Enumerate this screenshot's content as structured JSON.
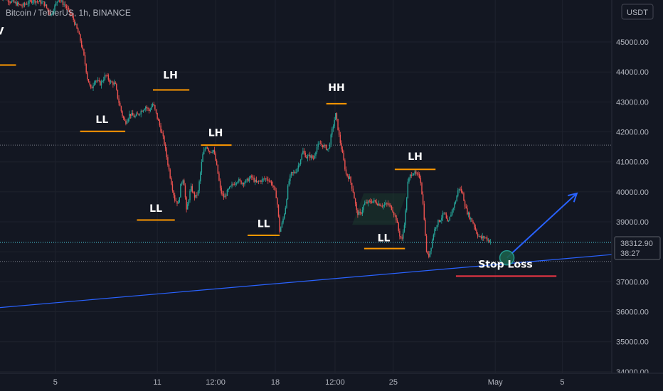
{
  "chart_data": {
    "type": "candlestick",
    "symbol_line": "Bitcoin / TetherUS, 1h, BINANCE",
    "currency": "USDT",
    "price_axis": {
      "range": [
        33950,
        46400
      ],
      "ticks": [
        {
          "value": 45000,
          "label": "45000.00"
        },
        {
          "value": 44000,
          "label": "44000.00"
        },
        {
          "value": 43000,
          "label": "43000.00"
        },
        {
          "value": 42000,
          "label": "42000.00"
        },
        {
          "value": 41000,
          "label": "41000.00"
        },
        {
          "value": 40000,
          "label": "40000.00"
        },
        {
          "value": 39000,
          "label": "39000.00"
        },
        {
          "value": 38000,
          "label": "38000.00"
        },
        {
          "value": 37000,
          "label": "37000.00"
        },
        {
          "value": 36000,
          "label": "36000.00"
        },
        {
          "value": 35000,
          "label": "35000.00"
        },
        {
          "value": 34000,
          "label": "34000.00"
        }
      ]
    },
    "time_axis": {
      "range": [
        0,
        840
      ],
      "ticks": [
        {
          "t": 76,
          "label": "5"
        },
        {
          "t": 216,
          "label": "11"
        },
        {
          "t": 296,
          "label": "12:00"
        },
        {
          "t": 378,
          "label": "18"
        },
        {
          "t": 460,
          "label": "12:00"
        },
        {
          "t": 540,
          "label": "25"
        },
        {
          "t": 680,
          "label": "May"
        },
        {
          "t": 772,
          "label": "5"
        }
      ]
    },
    "last_price": {
      "value": 38312.9,
      "label": "38312.90",
      "countdown": "38:27"
    },
    "horizontal_lines": [
      41560,
      37680
    ],
    "price_path": [
      [
        0,
        46550
      ],
      [
        15,
        46350
      ],
      [
        30,
        46200
      ],
      [
        45,
        46400
      ],
      [
        60,
        46300
      ],
      [
        70,
        45900
      ],
      [
        80,
        46450
      ],
      [
        90,
        46200
      ],
      [
        100,
        45800
      ],
      [
        106,
        45400
      ],
      [
        110,
        45100
      ],
      [
        115,
        44550
      ],
      [
        120,
        43800
      ],
      [
        125,
        43400
      ],
      [
        130,
        43750
      ],
      [
        138,
        43600
      ],
      [
        145,
        43900
      ],
      [
        152,
        43650
      ],
      [
        158,
        43600
      ],
      [
        162,
        43100
      ],
      [
        168,
        42550
      ],
      [
        172,
        42300
      ],
      [
        178,
        42600
      ],
      [
        185,
        42500
      ],
      [
        192,
        42650
      ],
      [
        200,
        42850
      ],
      [
        205,
        42700
      ],
      [
        210,
        42950
      ],
      [
        215,
        42550
      ],
      [
        220,
        42150
      ],
      [
        225,
        41700
      ],
      [
        230,
        41000
      ],
      [
        236,
        40200
      ],
      [
        240,
        39750
      ],
      [
        245,
        39600
      ],
      [
        248,
        40200
      ],
      [
        252,
        40500
      ],
      [
        256,
        39350
      ],
      [
        262,
        40150
      ],
      [
        268,
        39800
      ],
      [
        272,
        40000
      ],
      [
        278,
        41200
      ],
      [
        283,
        41550
      ],
      [
        288,
        41350
      ],
      [
        293,
        41400
      ],
      [
        298,
        40800
      ],
      [
        303,
        40000
      ],
      [
        308,
        39800
      ],
      [
        313,
        40050
      ],
      [
        320,
        40250
      ],
      [
        326,
        40400
      ],
      [
        332,
        40300
      ],
      [
        338,
        40350
      ],
      [
        345,
        40500
      ],
      [
        352,
        40300
      ],
      [
        360,
        40400
      ],
      [
        367,
        40450
      ],
      [
        374,
        40250
      ],
      [
        380,
        39800
      ],
      [
        384,
        38700
      ],
      [
        388,
        39000
      ],
      [
        392,
        39500
      ],
      [
        396,
        40300
      ],
      [
        400,
        40600
      ],
      [
        405,
        40650
      ],
      [
        410,
        40900
      ],
      [
        416,
        41350
      ],
      [
        421,
        41150
      ],
      [
        426,
        41200
      ],
      [
        430,
        41100
      ],
      [
        435,
        41500
      ],
      [
        440,
        41600
      ],
      [
        446,
        41500
      ],
      [
        451,
        41400
      ],
      [
        456,
        42050
      ],
      [
        461,
        42600
      ],
      [
        466,
        41800
      ],
      [
        470,
        41300
      ],
      [
        475,
        40600
      ],
      [
        480,
        40450
      ],
      [
        485,
        40000
      ],
      [
        490,
        39300
      ],
      [
        495,
        39250
      ],
      [
        500,
        39600
      ],
      [
        506,
        39650
      ],
      [
        512,
        39700
      ],
      [
        520,
        39600
      ],
      [
        526,
        39550
      ],
      [
        532,
        39600
      ],
      [
        538,
        39450
      ],
      [
        544,
        39100
      ],
      [
        548,
        38600
      ],
      [
        552,
        38400
      ],
      [
        556,
        39100
      ],
      [
        560,
        40300
      ],
      [
        564,
        40600
      ],
      [
        568,
        40650
      ],
      [
        572,
        40550
      ],
      [
        577,
        40500
      ],
      [
        582,
        39300
      ],
      [
        585,
        38100
      ],
      [
        588,
        37800
      ],
      [
        592,
        38200
      ],
      [
        596,
        38700
      ],
      [
        600,
        38950
      ],
      [
        605,
        39100
      ],
      [
        610,
        39300
      ],
      [
        615,
        38900
      ],
      [
        620,
        39350
      ],
      [
        625,
        39650
      ],
      [
        630,
        40150
      ],
      [
        635,
        39950
      ],
      [
        640,
        39400
      ],
      [
        645,
        39150
      ],
      [
        650,
        38950
      ],
      [
        655,
        38600
      ],
      [
        660,
        38450
      ],
      [
        665,
        38500
      ],
      [
        670,
        38400
      ],
      [
        675,
        38320
      ]
    ],
    "trendline": {
      "from": {
        "t": 0,
        "price": 36140
      },
      "to": {
        "t": 860,
        "price": 37950
      },
      "color": "#2962ff"
    },
    "projection_arrow": {
      "from": {
        "t": 696,
        "price": 37800
      },
      "to": {
        "t": 792,
        "price": 39950
      },
      "color": "#2962ff"
    },
    "circle_marker": {
      "t": 696,
      "price": 37800
    },
    "watermark_box": {
      "from": {
        "t": 596,
        "price": 39950
      },
      "to": {
        "t": 655,
        "price": 38900
      },
      "color": "#1f4a33"
    },
    "annotations": [
      {
        "text": "V",
        "t": 0,
        "price": 45250,
        "line_price": 44230,
        "line_from": -5,
        "line_to": 22,
        "line_color": "#ff9800",
        "text_above_line": true
      },
      {
        "text": "LL",
        "t": 140,
        "price": 42300,
        "line_price": 42020,
        "line_from": 110,
        "line_to": 172,
        "line_color": "#ff9800",
        "text_above_line": true
      },
      {
        "text": "LH",
        "t": 234,
        "price": 43780,
        "line_price": 43400,
        "line_from": 210,
        "line_to": 260,
        "line_color": "#ff9800",
        "text_above_line": true
      },
      {
        "text": "LL",
        "t": 214,
        "price": 39330,
        "line_price": 39060,
        "line_from": 188,
        "line_to": 240,
        "line_color": "#ff9800",
        "text_above_line": true
      },
      {
        "text": "LH",
        "t": 296,
        "price": 41860,
        "line_price": 41560,
        "line_from": 276,
        "line_to": 318,
        "line_color": "#ff9800",
        "text_above_line": true
      },
      {
        "text": "LL",
        "t": 362,
        "price": 38820,
        "line_price": 38550,
        "line_from": 340,
        "line_to": 384,
        "line_color": "#ff9800",
        "text_above_line": true
      },
      {
        "text": "HH",
        "t": 462,
        "price": 43360,
        "line_price": 42940,
        "line_from": 448,
        "line_to": 476,
        "line_color": "#ff9800",
        "text_above_line": true
      },
      {
        "text": "LH",
        "t": 570,
        "price": 41060,
        "line_price": 40750,
        "line_from": 542,
        "line_to": 598,
        "line_color": "#ff9800",
        "text_above_line": true
      },
      {
        "text": "LL",
        "t": 527,
        "price": 38350,
        "line_price": 38110,
        "line_from": 500,
        "line_to": 556,
        "line_color": "#ff9800",
        "text_above_line": true
      },
      {
        "text": "Stop Loss",
        "t": 694,
        "price": 37470,
        "line_price": 37190,
        "line_from": 626,
        "line_to": 764,
        "line_color": "#f23645",
        "text_above_line": true
      }
    ]
  }
}
